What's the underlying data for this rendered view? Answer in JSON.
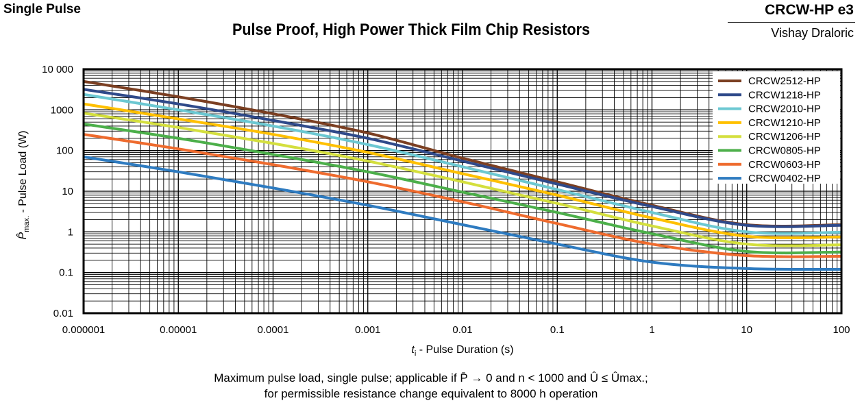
{
  "header": {
    "left": "Single Pulse",
    "title": "Pulse Proof, High Power Thick Film Chip Resistors",
    "brand": "CRCW-HP e3",
    "maker": "Vishay Draloric"
  },
  "caption": {
    "line1": "Maximum pulse load, single pulse; applicable if P̄ → 0 and n < 1000 and Û ≤ Ûmax.;",
    "line2": "for permissible resistance change equivalent to 8000 h operation"
  },
  "chart_data": {
    "type": "line",
    "xscale": "log",
    "yscale": "log",
    "xlim": [
      1e-06,
      100
    ],
    "ylim": [
      0.01,
      10000
    ],
    "grid": true,
    "legend": "top-right",
    "xlabel": {
      "main": "t",
      "sub": "i",
      "rest": " - Pulse Duration (s)"
    },
    "ylabel": {
      "main": "P̂",
      "sub": "max.",
      "rest": " - Pulse Load (W)"
    },
    "xticks": [
      "0.000001",
      "0.00001",
      "0.0001",
      "0.001",
      "0.01",
      "0.1",
      "1",
      "10",
      "100"
    ],
    "yticks": [
      "0.01",
      "0.1",
      "1",
      "10",
      "100",
      "1000",
      "10 000"
    ],
    "x": [
      1e-06,
      1e-05,
      0.0001,
      0.001,
      0.01,
      0.1,
      1,
      10,
      100
    ],
    "series": [
      {
        "name": "CRCW2512-HP",
        "color": "#7B3F22",
        "values": [
          5000,
          2100,
          800,
          270,
          65,
          17,
          4.5,
          1.5,
          1.5
        ]
      },
      {
        "name": "CRCW1218-HP",
        "color": "#2F4A8A",
        "values": [
          3200,
          1400,
          550,
          200,
          55,
          15,
          4.2,
          1.45,
          1.45
        ]
      },
      {
        "name": "CRCW2010-HP",
        "color": "#6CC8D2",
        "values": [
          2400,
          1000,
          400,
          140,
          40,
          11,
          3.0,
          1.0,
          0.98
        ]
      },
      {
        "name": "CRCW1210-HP",
        "color": "#FFC000",
        "values": [
          1400,
          600,
          250,
          90,
          27,
          8,
          2.2,
          0.78,
          0.75
        ]
      },
      {
        "name": "CRCW1206-HP",
        "color": "#D4DF3E",
        "values": [
          830,
          370,
          150,
          55,
          17,
          5,
          1.4,
          0.5,
          0.48
        ]
      },
      {
        "name": "CRCW0805-HP",
        "color": "#4CAF4A",
        "values": [
          450,
          200,
          80,
          30,
          9.5,
          3,
          0.9,
          0.33,
          0.32
        ]
      },
      {
        "name": "CRCW0603-HP",
        "color": "#EE6B2E",
        "values": [
          250,
          110,
          45,
          17,
          5.5,
          1.6,
          0.5,
          0.26,
          0.25
        ]
      },
      {
        "name": "CRCW0402-HP",
        "color": "#2E7BC0",
        "values": [
          70,
          30,
          12,
          4.5,
          1.5,
          0.5,
          0.18,
          0.125,
          0.12
        ]
      }
    ]
  }
}
